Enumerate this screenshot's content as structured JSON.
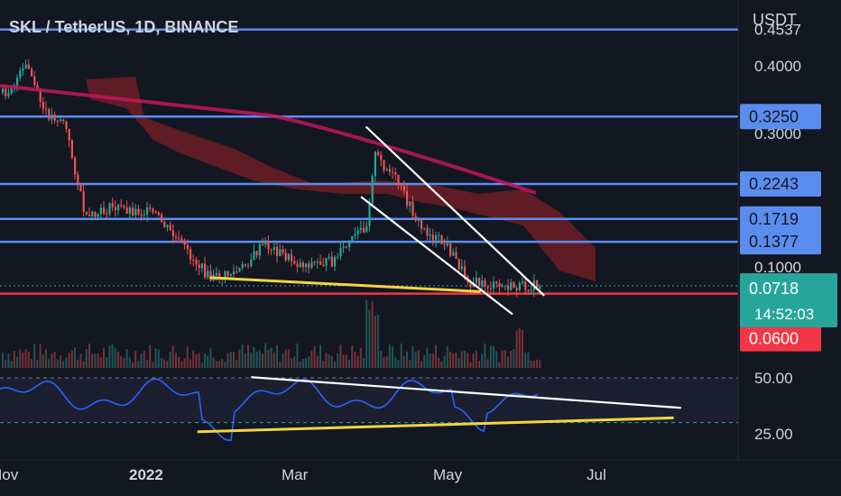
{
  "header": {
    "title": "SKL / TetherUS, 1D, BINANCE",
    "currency": "USDT"
  },
  "colors": {
    "background": "#131722",
    "axis_text": "#d1d4dc",
    "level_line": "#5b8def",
    "support_line": "#f23645",
    "current_price": "#26a69a",
    "bull_candle": "#26a69a",
    "bear_candle": "#ef5350",
    "trendline_yellow": "#f5d442",
    "trendline_white": "#ffffff",
    "ma_line": "#c2185b",
    "cloud": "#7a1f26",
    "rsi": "#2962ff",
    "rsi_band": "#2a2e4a"
  },
  "chart_data": {
    "type": "line",
    "title": "SKL / TetherUS, 1D, BINANCE",
    "price_axis": {
      "unit": "USDT",
      "tick_labels": [
        "0.4000",
        "0.3000",
        "0.1000"
      ],
      "partial_tick_label": "0.4537"
    },
    "levels": [
      {
        "value": 0.4537
      },
      {
        "value": 0.325,
        "label": "0.3250"
      },
      {
        "value": 0.2243,
        "label": "0.2243"
      },
      {
        "value": 0.1719,
        "label": "0.1719"
      },
      {
        "value": 0.1377,
        "label": "0.1377"
      },
      {
        "value": 0.06,
        "label": "0.0600"
      }
    ],
    "current_price": {
      "value": 0.0718,
      "label": "0.0718",
      "countdown": "14:52:03"
    },
    "x_axis": {
      "tick_labels": [
        "Nov",
        "2022",
        "Mar",
        "May",
        "Jul"
      ]
    },
    "price_series": {
      "name": "SKL/USDT",
      "dates": [
        "2021-11-01",
        "2021-11-10",
        "2021-11-17",
        "2021-11-25",
        "2021-12-04",
        "2021-12-15",
        "2022-01-01",
        "2022-01-15",
        "2022-01-24",
        "2022-02-05",
        "2022-02-15",
        "2022-03-01",
        "2022-03-15",
        "2022-03-29",
        "2022-04-01",
        "2022-04-10",
        "2022-04-20",
        "2022-05-01",
        "2022-05-10",
        "2022-05-20",
        "2022-06-01",
        "2022-06-05"
      ],
      "close": [
        0.36,
        0.4,
        0.33,
        0.32,
        0.17,
        0.19,
        0.18,
        0.12,
        0.082,
        0.095,
        0.135,
        0.105,
        0.108,
        0.165,
        0.27,
        0.23,
        0.16,
        0.13,
        0.078,
        0.071,
        0.07,
        0.0718
      ]
    },
    "rsi": {
      "upper_level": 50.0,
      "lower_level": 30.0,
      "tick_labels": [
        "50.00",
        "25.00"
      ]
    },
    "trendlines": [
      {
        "color": "yellow",
        "pane": "price",
        "from": [
          "2022-01-24",
          0.084
        ],
        "to": [
          "2022-05-15",
          0.063
        ]
      },
      {
        "color": "white",
        "pane": "price",
        "from": [
          "2022-03-29",
          0.31
        ],
        "to": [
          "2022-06-10",
          0.057
        ]
      },
      {
        "color": "white",
        "pane": "price",
        "from": [
          "2022-03-27",
          0.205
        ],
        "to": [
          "2022-05-28",
          0.029
        ]
      },
      {
        "color": "white",
        "pane": "rsi",
        "from": [
          "2022-02-10",
          50.3
        ],
        "to": [
          "2022-08-05",
          36.6
        ]
      },
      {
        "color": "yellow",
        "pane": "rsi",
        "from": [
          "2022-01-19",
          25.9
        ],
        "to": [
          "2022-08-02",
          32.1
        ]
      }
    ]
  }
}
